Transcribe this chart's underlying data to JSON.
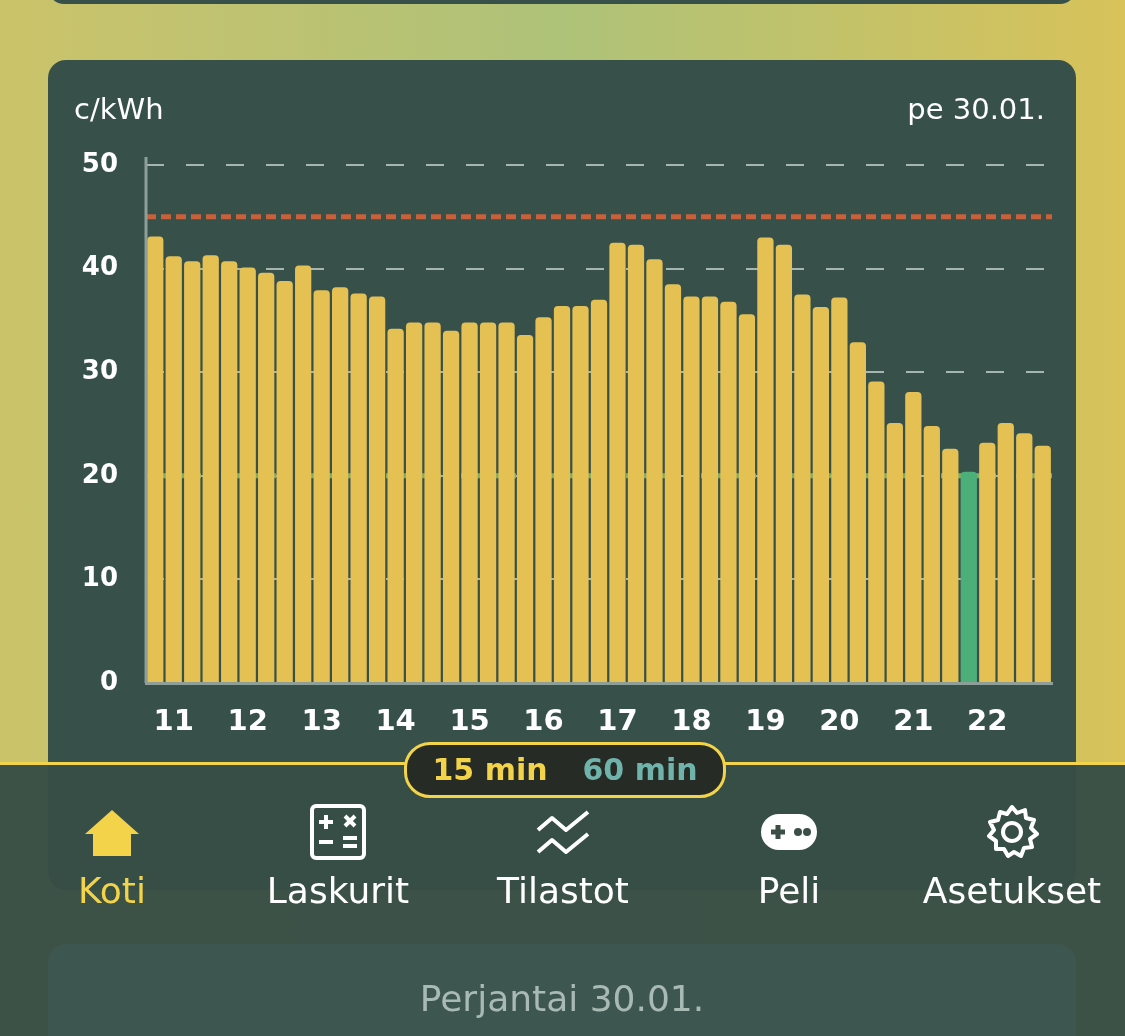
{
  "chart_data": {
    "type": "bar",
    "title": "pe 30.01.",
    "ylabel": "c/kWh",
    "categories": [
      null,
      "11",
      null,
      null,
      null,
      "12",
      null,
      null,
      null,
      "13",
      null,
      null,
      null,
      "14",
      null,
      null,
      null,
      "15",
      null,
      null,
      null,
      "16",
      null,
      null,
      null,
      "17",
      null,
      null,
      null,
      "18",
      null,
      null,
      null,
      "19",
      null,
      null,
      null,
      "20",
      null,
      null,
      null,
      "21",
      null,
      null,
      null,
      "22",
      null,
      null,
      null
    ],
    "values": [
      43.1,
      41.2,
      40.7,
      41.3,
      40.7,
      40.1,
      39.6,
      38.8,
      40.3,
      37.9,
      38.2,
      37.6,
      37.3,
      34.2,
      34.8,
      34.8,
      34.0,
      34.8,
      34.8,
      34.8,
      33.6,
      35.3,
      36.4,
      36.4,
      37.0,
      42.5,
      42.3,
      40.9,
      38.5,
      37.3,
      37.3,
      36.8,
      35.6,
      43.0,
      42.3,
      37.5,
      36.3,
      37.2,
      32.9,
      29.1,
      25.1,
      28.1,
      24.8,
      22.6,
      20.4,
      23.2,
      25.1,
      24.1,
      22.9
    ],
    "colors": [
      "#e5c052",
      "#e5c052",
      "#e5c052",
      "#e5c052",
      "#e5c052",
      "#e5c052",
      "#e5c052",
      "#e5c052",
      "#e5c052",
      "#e5c052",
      "#e5c052",
      "#e5c052",
      "#e5c052",
      "#e5c052",
      "#e5c052",
      "#e5c052",
      "#e5c052",
      "#e5c052",
      "#e5c052",
      "#e5c052",
      "#e5c052",
      "#e5c052",
      "#e5c052",
      "#e5c052",
      "#e5c052",
      "#e5c052",
      "#e5c052",
      "#e5c052",
      "#e5c052",
      "#e5c052",
      "#e5c052",
      "#e5c052",
      "#e5c052",
      "#e5c052",
      "#e5c052",
      "#e5c052",
      "#e5c052",
      "#e5c052",
      "#e5c052",
      "#e5c052",
      "#e5c052",
      "#e5c052",
      "#e5c052",
      "#e5c052",
      "#4caf7a",
      "#e5c052",
      "#e5c052",
      "#e5c052",
      "#e5c052"
    ],
    "ylim": [
      0,
      50
    ],
    "yticks": [
      0,
      10,
      20,
      30,
      40,
      50
    ],
    "grid": "y",
    "ref_lines": [
      {
        "axis": "y",
        "value": 45,
        "color": "#c8603a",
        "line_style": "dashed"
      },
      {
        "axis": "y",
        "value": 20,
        "color": "#7fae62",
        "line_style": "dashed"
      }
    ],
    "annotations": [
      "15 min",
      "60 min",
      "Koti",
      "Laskurit",
      "Tilastot",
      "Peli",
      "Asetukset",
      "Perjantai 30.01."
    ]
  }
}
